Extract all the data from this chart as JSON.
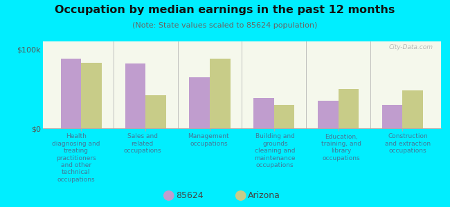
{
  "title": "Occupation by median earnings in the past 12 months",
  "subtitle": "(Note: State values scaled to 85624 population)",
  "categories": [
    "Health\ndiagnosing and\ntreating\npractitioners\nand other\ntechnical\noccupations",
    "Sales and\nrelated\noccupations",
    "Management\noccupations",
    "Building and\ngrounds\ncleaning and\nmaintenance\noccupations",
    "Education,\ntraining, and\nlibrary\noccupations",
    "Construction\nand extraction\noccupations"
  ],
  "values_85624": [
    88000,
    82000,
    65000,
    38000,
    35000,
    30000
  ],
  "values_arizona": [
    83000,
    42000,
    88000,
    30000,
    50000,
    48000
  ],
  "color_85624": "#c09dce",
  "color_arizona": "#c8cc88",
  "ylim": [
    0,
    110000
  ],
  "ytick_labels": [
    "$0",
    "$100k"
  ],
  "legend_85624": "85624",
  "legend_arizona": "Arizona",
  "background_color": "#00eeff",
  "plot_bg_top": "#e8efd8",
  "plot_bg_bottom": "#f5f8ec",
  "watermark": "City-Data.com",
  "bar_width": 0.32,
  "label_color": "#447799",
  "title_color": "#111111",
  "subtitle_color": "#666666"
}
